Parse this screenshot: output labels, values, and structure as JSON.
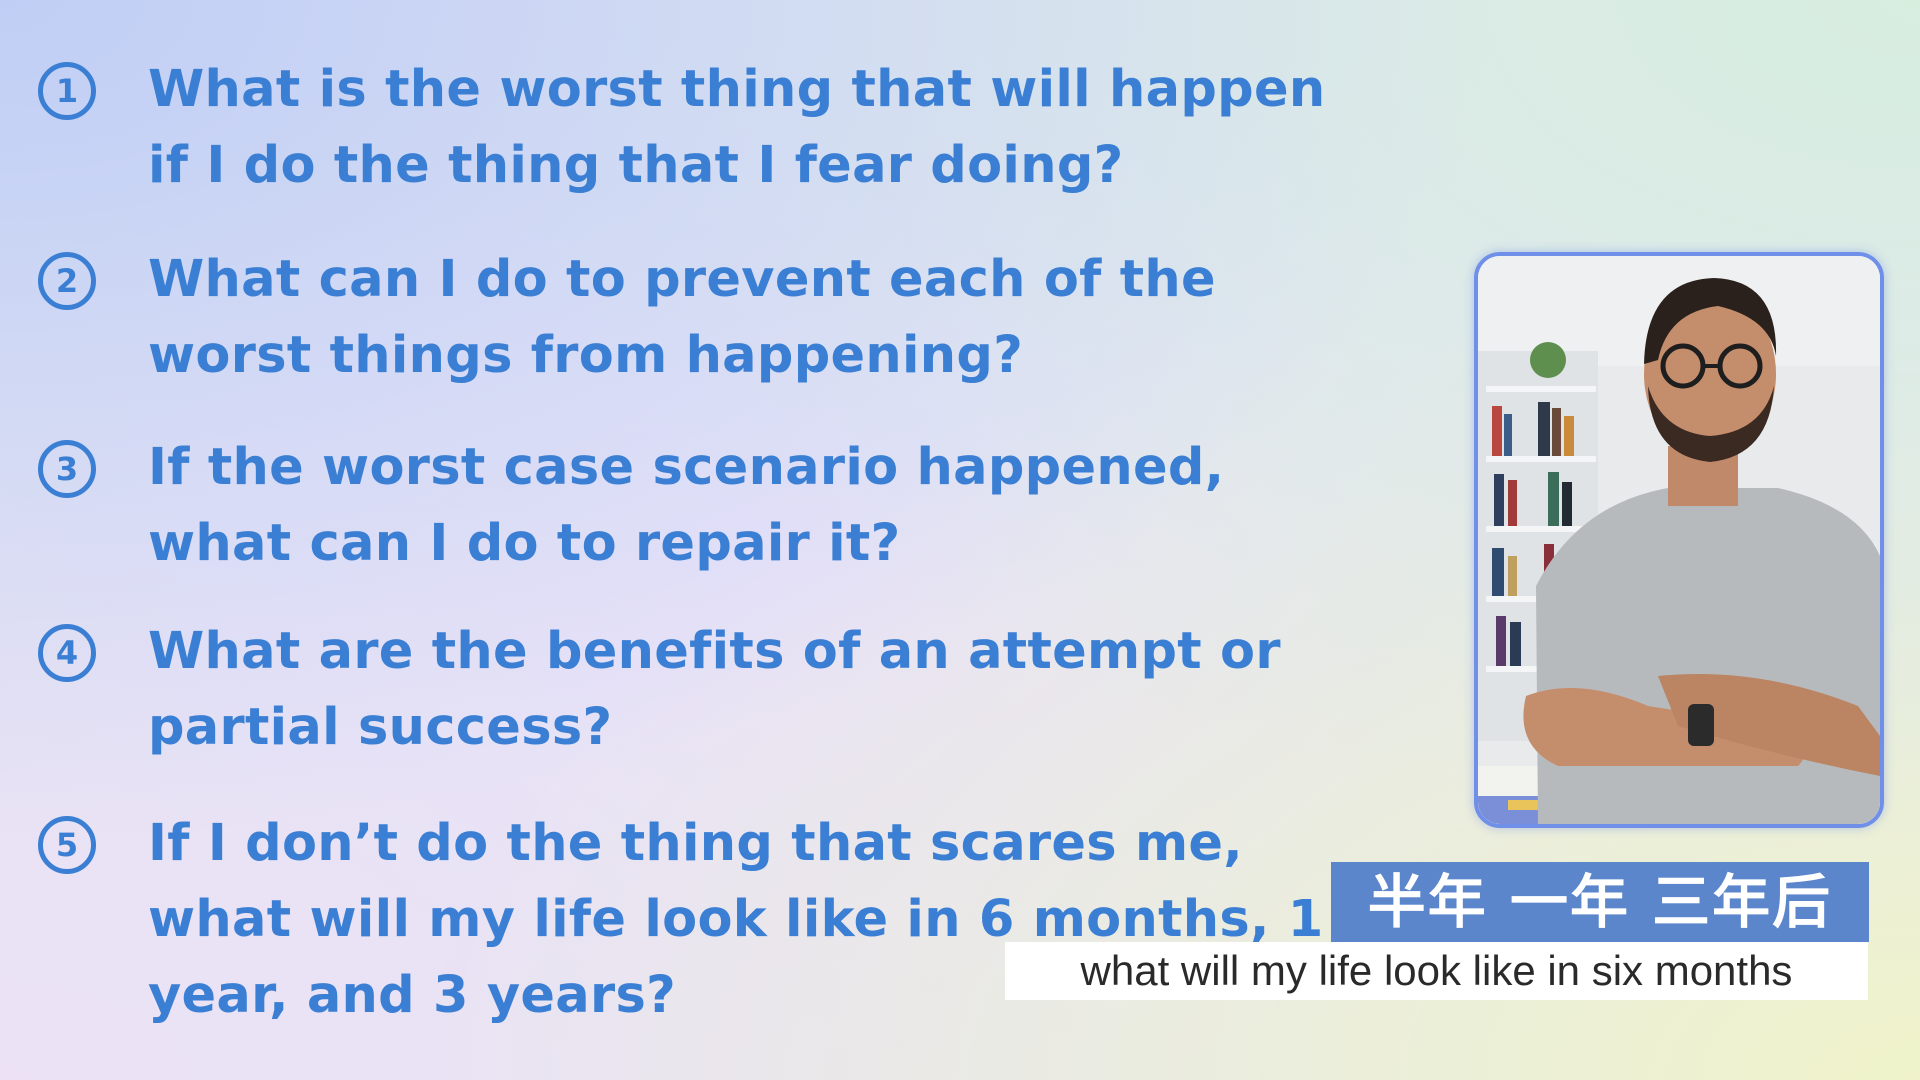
{
  "questions": [
    {
      "number": "1",
      "text": "What is the worst thing that will happen if I do the thing that I fear doing?"
    },
    {
      "number": "2",
      "text": "What can I do to prevent each of the worst things from happening?"
    },
    {
      "number": "3",
      "text": "If the worst case scenario happened, what can I do to repair it?"
    },
    {
      "number": "4",
      "text": "What are the benefits of an attempt or partial success?"
    },
    {
      "number": "5",
      "text": "If I don’t do the thing that scares me, what will my life look like in 6 months, 1 year, and 3 years?"
    }
  ],
  "captions": {
    "chinese": "半年 一年 三年后",
    "english": "what will my life look like in six months"
  },
  "colors": {
    "accent": "#3b7fd4",
    "caption_bg": "#5b86cc",
    "frame_border": "#6f8fe8"
  }
}
